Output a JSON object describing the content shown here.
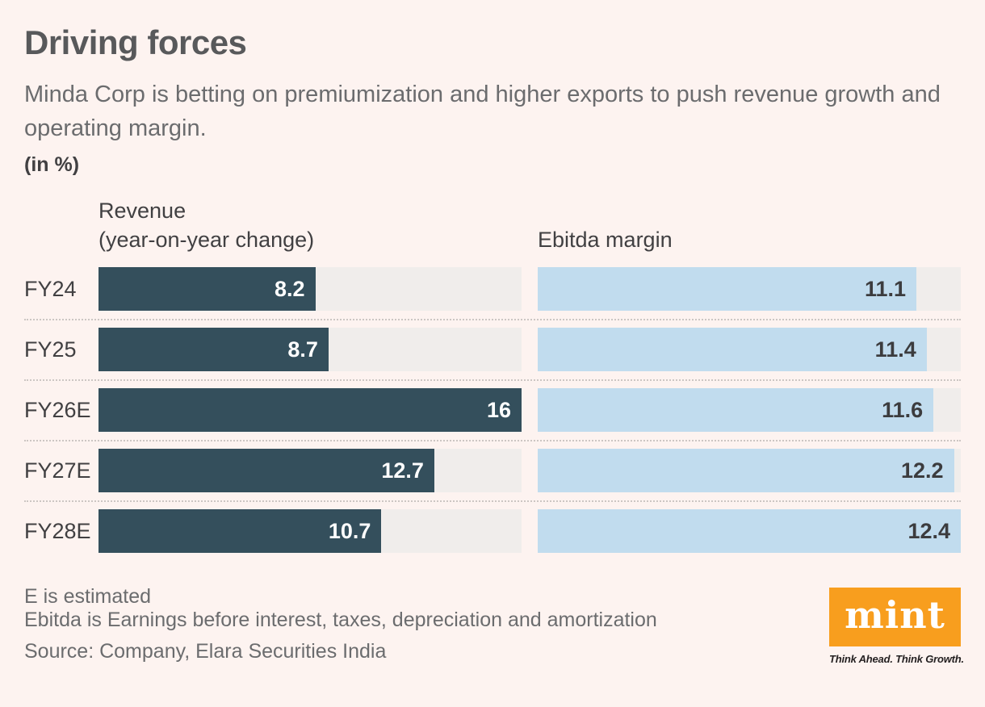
{
  "title": "Driving forces",
  "subtitle": "Minda Corp is betting on premiumization and higher exports to push revenue growth and operating margin.",
  "unit_label": "(in %)",
  "chart_data": {
    "type": "bar",
    "orientation": "horizontal",
    "title": "Driving forces",
    "subtitle": "Minda Corp is betting on premiumization and higher exports to push revenue growth and operating margin.",
    "unit": "in %",
    "categories": [
      "FY24",
      "FY25",
      "FY26E",
      "FY27E",
      "FY28E"
    ],
    "series": [
      {
        "name": "Revenue",
        "subname": "(year-on-year change)",
        "values": [
          8.2,
          8.7,
          16,
          12.7,
          10.7
        ],
        "scale_max": 16,
        "bar_color": "#344f5c",
        "value_color": "#ffffff"
      },
      {
        "name": "Ebitda margin",
        "subname": "",
        "values": [
          11.1,
          11.4,
          11.6,
          12.2,
          12.4
        ],
        "scale_max": 12.4,
        "bar_color": "#c1dcee",
        "value_color": "#3c3c3e"
      }
    ],
    "track_color": "#f0edeb",
    "grid": "dotted-row-separators",
    "legend_position": "column-headers",
    "value_labels": "inside-end"
  },
  "footnotes": {
    "line1": "E is estimated",
    "line2": "Ebitda is Earnings before interest, taxes, depreciation and amortization"
  },
  "source": "Source: Company, Elara Securities India",
  "branding": {
    "logo_text": "mint",
    "tagline": "Think Ahead. Think Growth.",
    "logo_bg": "#f89e1e",
    "logo_text_color": "#ffffff"
  },
  "colors": {
    "background": "#fdf3f0",
    "title_text": "#58595b",
    "body_text": "#6b6c6e",
    "label_text": "#414042",
    "separator": "#ccc6c3"
  }
}
